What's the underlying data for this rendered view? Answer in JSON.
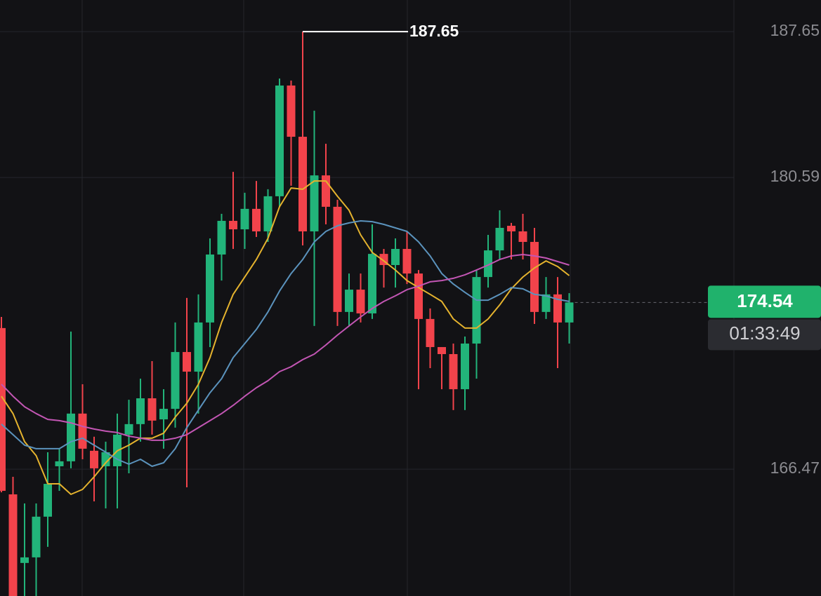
{
  "chart_data": {
    "type": "candlestick",
    "open": [
      173.3,
      165.25,
      161.93,
      162.2,
      164.17,
      166.61,
      166.85,
      169.16,
      167.36,
      166.61,
      166.61,
      168.14,
      168.65,
      169.9,
      168.88,
      169.39,
      172.14,
      171.19,
      173.57,
      176.86,
      178.49,
      178.08,
      179.07,
      177.98,
      179.68,
      185.04,
      182.56,
      177.98,
      180.69,
      179.17,
      174.08,
      175.16,
      174.01,
      176.89,
      176.35,
      177.13,
      175.94,
      173.74,
      172.38,
      172.04,
      170.34,
      172.55,
      175.77,
      177.06,
      178.25,
      177.98,
      177.47,
      174.08,
      174.93,
      173.57
    ],
    "high": [
      173.84,
      166.1,
      164.81,
      164.81,
      167.29,
      167.46,
      173.13,
      170.58,
      168.04,
      167.8,
      169.16,
      169.83,
      170.85,
      171.7,
      170.34,
      173.57,
      174.76,
      174.93,
      177.64,
      178.83,
      180.86,
      179.85,
      180.42,
      180.02,
      185.38,
      185.28,
      187.65,
      183.82,
      182.22,
      179.51,
      175.94,
      175.94,
      178.32,
      177.13,
      177.64,
      177.98,
      176.11,
      174.25,
      172.38,
      172.55,
      172.89,
      176.11,
      177.81,
      179.0,
      178.39,
      178.83,
      178.15,
      175.77,
      175.77,
      174.99
    ],
    "low": [
      165.35,
      160.33,
      160.33,
      160.33,
      162.71,
      165.42,
      166.51,
      166.95,
      164.91,
      164.57,
      164.57,
      166.27,
      167.8,
      168.14,
      167.46,
      168.48,
      165.59,
      169.16,
      172.38,
      175.6,
      177.13,
      177.13,
      177.71,
      177.47,
      179.17,
      180.19,
      177.3,
      173.4,
      178.32,
      173.4,
      173.4,
      173.57,
      173.74,
      175.26,
      175.26,
      175.43,
      170.34,
      171.36,
      170.34,
      169.33,
      169.33,
      170.85,
      175.26,
      176.62,
      176.62,
      176.62,
      173.5,
      173.74,
      171.36,
      172.55
    ],
    "close": [
      165.42,
      160.33,
      162.2,
      164.17,
      165.76,
      166.85,
      169.16,
      167.46,
      166.51,
      167.29,
      168.14,
      168.65,
      169.9,
      168.82,
      169.39,
      172.14,
      171.19,
      173.57,
      176.86,
      178.49,
      178.08,
      179.07,
      177.98,
      179.68,
      185.04,
      182.56,
      177.98,
      180.69,
      179.17,
      174.08,
      175.16,
      174.01,
      176.89,
      176.35,
      177.13,
      175.94,
      173.74,
      172.38,
      172.04,
      170.34,
      172.55,
      175.77,
      177.06,
      178.15,
      177.98,
      177.47,
      174.08,
      174.93,
      173.57,
      174.54
    ],
    "up_color": "#22b47a",
    "down_color": "#f2434b",
    "series": [
      {
        "color": "#e5b32e",
        "values": [
          170.0,
          169.16,
          167.8,
          167.12,
          165.76,
          165.76,
          165.25,
          165.49,
          166.1,
          166.78,
          167.36,
          167.63,
          167.97,
          167.97,
          168.21,
          168.99,
          169.66,
          170.58,
          171.87,
          173.57,
          174.93,
          175.77,
          176.62,
          177.64,
          179.17,
          180.08,
          180.02,
          180.42,
          180.42,
          179.68,
          179.0,
          177.81,
          176.96,
          176.55,
          176.11,
          175.6,
          175.26,
          174.93,
          174.59,
          173.74,
          173.3,
          173.3,
          173.74,
          174.42,
          175.2,
          175.77,
          176.21,
          176.55,
          176.28,
          175.84
        ]
      },
      {
        "color": "#5b93bd",
        "values": [
          168.65,
          168.14,
          167.63,
          167.46,
          167.46,
          167.46,
          167.8,
          167.97,
          167.63,
          167.29,
          166.95,
          166.71,
          166.95,
          166.61,
          166.78,
          167.46,
          168.48,
          169.33,
          170.17,
          170.85,
          171.87,
          172.55,
          173.23,
          174.08,
          175.09,
          175.94,
          176.62,
          177.47,
          177.98,
          178.25,
          178.39,
          178.49,
          178.45,
          178.32,
          178.15,
          177.98,
          177.47,
          176.79,
          175.94,
          175.43,
          175.03,
          174.65,
          174.65,
          174.93,
          175.26,
          175.2,
          174.93,
          174.86,
          174.69,
          174.59
        ]
      },
      {
        "color": "#c356b4",
        "values": [
          170.58,
          170.0,
          169.49,
          169.16,
          168.88,
          168.82,
          168.71,
          168.54,
          168.41,
          168.31,
          168.24,
          168.07,
          167.97,
          167.87,
          167.87,
          167.97,
          168.14,
          168.48,
          168.82,
          169.16,
          169.56,
          170.0,
          170.41,
          170.75,
          171.19,
          171.43,
          171.77,
          172.04,
          172.48,
          172.96,
          173.4,
          173.84,
          174.25,
          174.59,
          174.86,
          175.16,
          175.33,
          175.54,
          175.6,
          175.71,
          175.88,
          176.11,
          176.35,
          176.62,
          176.79,
          176.86,
          176.79,
          176.69,
          176.52,
          176.35
        ]
      }
    ],
    "ylim": [
      160.33,
      189.18
    ],
    "yticks": [
      166.47,
      180.59,
      187.65
    ],
    "grid": true,
    "max_marker": 187.65,
    "last_price": 174.54,
    "countdown": "01:33:49"
  }
}
